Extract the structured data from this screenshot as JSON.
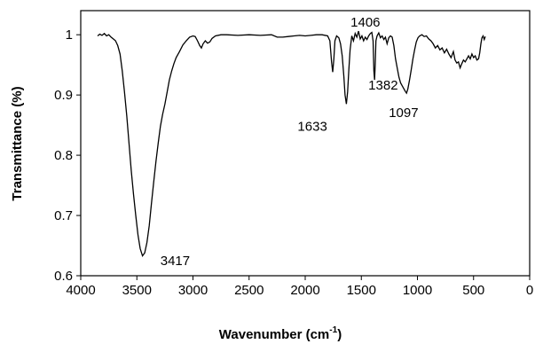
{
  "chart_data": {
    "type": "line",
    "title": "",
    "xlabel": "Wavenumber (cm",
    "xlabel_sup": "-1",
    "xlabel_end": ")",
    "ylabel": "Transmittance (%)",
    "xlim": [
      4000,
      0
    ],
    "ylim": [
      0.6,
      1.04
    ],
    "x_reversed": true,
    "grid": false,
    "xticks": [
      4000,
      3500,
      3000,
      2500,
      2000,
      1500,
      1000,
      500,
      0
    ],
    "xtick_labels": [
      "4000",
      "3500",
      "3000",
      "2500",
      "2000",
      "1500",
      "1000",
      "500",
      "0"
    ],
    "yticks": [
      0.6,
      0.7,
      0.8,
      0.9,
      1.0
    ],
    "ytick_labels": [
      "0.6",
      "0.7",
      "0.8",
      "0.9",
      "1"
    ],
    "series": [
      {
        "color": "#000000",
        "points": [
          [
            3850,
            0.998
          ],
          [
            3830,
            1.001
          ],
          [
            3810,
            0.999
          ],
          [
            3790,
            1.002
          ],
          [
            3770,
            0.998
          ],
          [
            3750,
            1.0
          ],
          [
            3730,
            0.996
          ],
          [
            3710,
            0.993
          ],
          [
            3690,
            0.99
          ],
          [
            3670,
            0.982
          ],
          [
            3650,
            0.968
          ],
          [
            3630,
            0.94
          ],
          [
            3610,
            0.905
          ],
          [
            3590,
            0.865
          ],
          [
            3570,
            0.82
          ],
          [
            3550,
            0.775
          ],
          [
            3530,
            0.735
          ],
          [
            3510,
            0.7
          ],
          [
            3490,
            0.668
          ],
          [
            3470,
            0.645
          ],
          [
            3450,
            0.633
          ],
          [
            3430,
            0.638
          ],
          [
            3410,
            0.655
          ],
          [
            3390,
            0.683
          ],
          [
            3370,
            0.72
          ],
          [
            3350,
            0.755
          ],
          [
            3330,
            0.79
          ],
          [
            3310,
            0.82
          ],
          [
            3290,
            0.848
          ],
          [
            3270,
            0.868
          ],
          [
            3250,
            0.885
          ],
          [
            3230,
            0.905
          ],
          [
            3210,
            0.925
          ],
          [
            3190,
            0.94
          ],
          [
            3170,
            0.952
          ],
          [
            3150,
            0.962
          ],
          [
            3120,
            0.972
          ],
          [
            3090,
            0.983
          ],
          [
            3060,
            0.99
          ],
          [
            3030,
            0.996
          ],
          [
            3000,
            0.998
          ],
          [
            2980,
            0.997
          ],
          [
            2960,
            0.99
          ],
          [
            2940,
            0.982
          ],
          [
            2925,
            0.978
          ],
          [
            2910,
            0.985
          ],
          [
            2890,
            0.99
          ],
          [
            2870,
            0.986
          ],
          [
            2850,
            0.988
          ],
          [
            2830,
            0.994
          ],
          [
            2800,
            0.998
          ],
          [
            2750,
            1.0
          ],
          [
            2700,
            1.0
          ],
          [
            2600,
            0.999
          ],
          [
            2500,
            1.0
          ],
          [
            2400,
            0.999
          ],
          [
            2300,
            1.0
          ],
          [
            2250,
            0.996
          ],
          [
            2200,
            0.996
          ],
          [
            2150,
            0.997
          ],
          [
            2100,
            0.998
          ],
          [
            2050,
            0.999
          ],
          [
            2000,
            0.998
          ],
          [
            1950,
            0.999
          ],
          [
            1900,
            1.0
          ],
          [
            1850,
            1.0
          ],
          [
            1800,
            0.998
          ],
          [
            1780,
            0.99
          ],
          [
            1765,
            0.955
          ],
          [
            1755,
            0.938
          ],
          [
            1745,
            0.96
          ],
          [
            1735,
            0.99
          ],
          [
            1720,
            0.998
          ],
          [
            1700,
            0.995
          ],
          [
            1685,
            0.985
          ],
          [
            1670,
            0.965
          ],
          [
            1655,
            0.93
          ],
          [
            1645,
            0.9
          ],
          [
            1633,
            0.885
          ],
          [
            1622,
            0.905
          ],
          [
            1612,
            0.94
          ],
          [
            1600,
            0.975
          ],
          [
            1585,
            0.998
          ],
          [
            1570,
            0.99
          ],
          [
            1555,
            1.002
          ],
          [
            1540,
            0.996
          ],
          [
            1525,
            1.006
          ],
          [
            1510,
            0.993
          ],
          [
            1495,
            0.998
          ],
          [
            1480,
            0.99
          ],
          [
            1465,
            0.996
          ],
          [
            1450,
            0.992
          ],
          [
            1435,
            0.998
          ],
          [
            1420,
            1.002
          ],
          [
            1406,
            1.004
          ],
          [
            1395,
            0.99
          ],
          [
            1388,
            0.94
          ],
          [
            1382,
            0.925
          ],
          [
            1376,
            0.95
          ],
          [
            1370,
            0.99
          ],
          [
            1360,
            0.998
          ],
          [
            1345,
            1.003
          ],
          [
            1330,
            0.995
          ],
          [
            1315,
            0.998
          ],
          [
            1300,
            0.992
          ],
          [
            1285,
            0.996
          ],
          [
            1270,
            0.985
          ],
          [
            1255,
            0.995
          ],
          [
            1240,
            0.998
          ],
          [
            1225,
            0.996
          ],
          [
            1210,
            0.982
          ],
          [
            1195,
            0.96
          ],
          [
            1180,
            0.945
          ],
          [
            1165,
            0.93
          ],
          [
            1150,
            0.92
          ],
          [
            1135,
            0.915
          ],
          [
            1120,
            0.91
          ],
          [
            1105,
            0.905
          ],
          [
            1097,
            0.903
          ],
          [
            1085,
            0.91
          ],
          [
            1070,
            0.925
          ],
          [
            1055,
            0.942
          ],
          [
            1040,
            0.96
          ],
          [
            1025,
            0.975
          ],
          [
            1010,
            0.988
          ],
          [
            995,
            0.995
          ],
          [
            980,
            0.998
          ],
          [
            960,
            1.0
          ],
          [
            940,
            0.997
          ],
          [
            920,
            0.998
          ],
          [
            900,
            0.993
          ],
          [
            880,
            0.99
          ],
          [
            860,
            0.985
          ],
          [
            840,
            0.978
          ],
          [
            820,
            0.982
          ],
          [
            800,
            0.975
          ],
          [
            780,
            0.978
          ],
          [
            760,
            0.97
          ],
          [
            740,
            0.976
          ],
          [
            720,
            0.968
          ],
          [
            700,
            0.962
          ],
          [
            680,
            0.972
          ],
          [
            665,
            0.958
          ],
          [
            650,
            0.953
          ],
          [
            635,
            0.955
          ],
          [
            620,
            0.945
          ],
          [
            605,
            0.952
          ],
          [
            590,
            0.958
          ],
          [
            575,
            0.955
          ],
          [
            560,
            0.96
          ],
          [
            545,
            0.965
          ],
          [
            530,
            0.96
          ],
          [
            515,
            0.968
          ],
          [
            500,
            0.962
          ],
          [
            485,
            0.965
          ],
          [
            470,
            0.958
          ],
          [
            455,
            0.96
          ],
          [
            445,
            0.97
          ],
          [
            435,
            0.985
          ],
          [
            425,
            0.995
          ],
          [
            415,
            0.998
          ],
          [
            405,
            0.992
          ],
          [
            395,
            0.997
          ]
        ]
      }
    ],
    "annotations": [
      {
        "text": "3417",
        "x": 3417,
        "y": 0.635
      },
      {
        "text": "1406",
        "x": 1406,
        "y": 1.0
      },
      {
        "text": "1633",
        "x": 1633,
        "y": 0.885
      },
      {
        "text": "1382",
        "x": 1382,
        "y": 0.925
      },
      {
        "text": "1097",
        "x": 1097,
        "y": 0.903
      }
    ]
  }
}
